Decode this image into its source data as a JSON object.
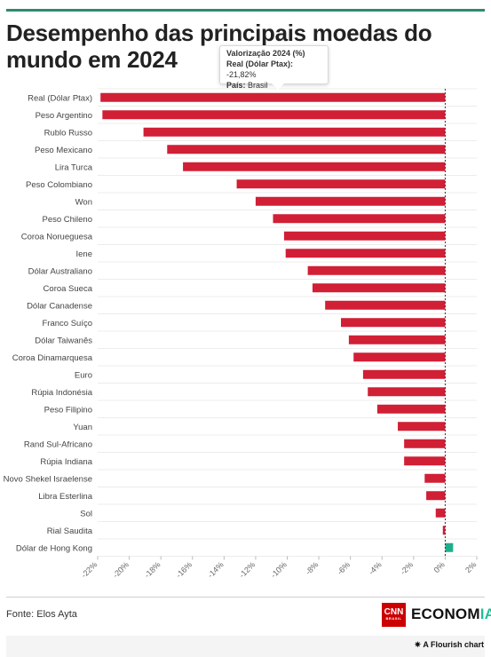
{
  "title": "Desempenho das principais moedas do mundo em 2024",
  "tooltip": {
    "heading": "Valorização 2024 (%)",
    "row_label": "Real (Dólar Ptax):",
    "row_value": "-21,82%",
    "country_label": "País:",
    "country_value": "Brasil"
  },
  "source": "Fonte: Elos Ayta",
  "logo": {
    "cnn": "CNN",
    "cnn_sub": "BRASIL",
    "brand_main": "ECONOM",
    "brand_accent": "IA"
  },
  "attribution": "A Flourish chart",
  "colors": {
    "negative": "#d11f35",
    "positive": "#1fae8c",
    "accent_rule": "#2e8b6e"
  },
  "chart_data": {
    "type": "bar",
    "orientation": "horizontal",
    "categories": [
      "Real (Dólar Ptax)",
      "Peso Argentino",
      "Rublo Russo",
      "Peso Mexicano",
      "Lira Turca",
      "Peso Colombiano",
      "Won",
      "Peso Chileno",
      "Coroa Norueguesa",
      "Iene",
      "Dólar Australiano",
      "Coroa Sueca",
      "Dólar Canadense",
      "Franco Suíço",
      "Dólar Taiwanês",
      "Coroa Dinamarquesa",
      "Euro",
      "Rúpia Indonésia",
      "Peso Filipino",
      "Yuan",
      "Rand Sul-Africano",
      "Rúpia Indiana",
      "Novo Shekel Israelense",
      "Libra Esterlina",
      "Sol",
      "Rial Saudita",
      "Dólar de Hong Kong"
    ],
    "values": [
      -21.82,
      -21.7,
      -19.1,
      -17.6,
      -16.6,
      -13.2,
      -12.0,
      -10.9,
      -10.2,
      -10.1,
      -8.7,
      -8.4,
      -7.6,
      -6.6,
      -6.1,
      -5.8,
      -5.2,
      -4.9,
      -4.3,
      -3.0,
      -2.6,
      -2.6,
      -1.3,
      -1.2,
      -0.6,
      -0.15,
      0.5
    ],
    "xlim": [
      -22,
      2
    ],
    "x_ticks": [
      -22,
      -20,
      -18,
      -16,
      -14,
      -12,
      -10,
      -8,
      -6,
      -4,
      -2,
      0,
      2
    ],
    "x_tick_suffix": "%",
    "grid": true
  }
}
